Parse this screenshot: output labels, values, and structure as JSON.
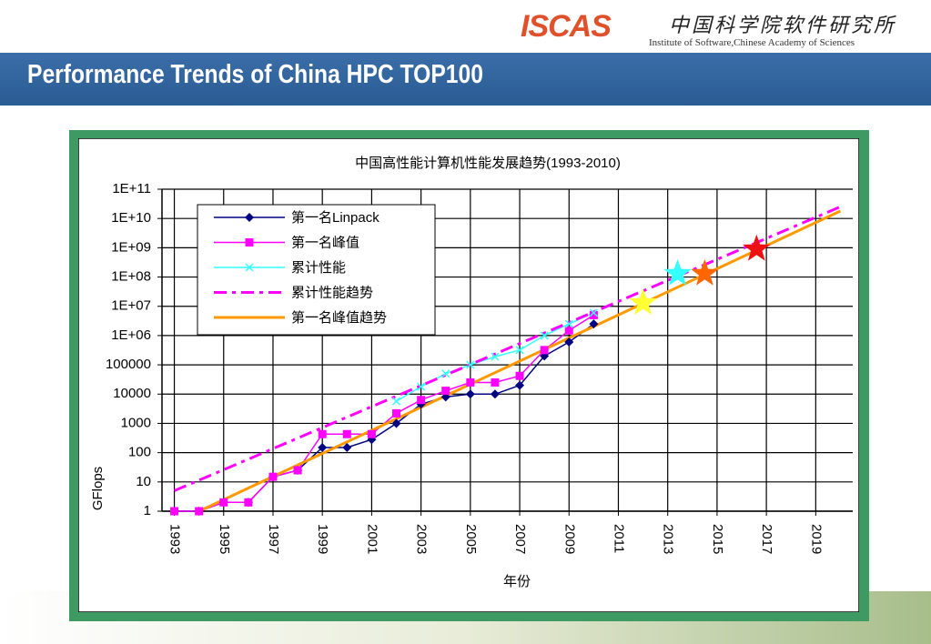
{
  "header": {
    "title": "Performance Trends of China HPC TOP100",
    "logo": "ISCAS",
    "org_cn": "中国科学院软件研究所",
    "org_en": "Institute of Software,Chinese Academy of Sciences"
  },
  "chart_data": {
    "type": "line",
    "title": "中国高性能计算机性能发展趋势(1993-2010)",
    "x_label": "年份",
    "y_label": "GFlops",
    "log_y": true,
    "grid": true,
    "xlim": [
      1992.5,
      2020.5
    ],
    "xticks": [
      1993,
      1995,
      1997,
      1999,
      2001,
      2003,
      2005,
      2007,
      2009,
      2011,
      2013,
      2015,
      2017,
      2019
    ],
    "ylim": [
      1,
      100000000000
    ],
    "yticks": [
      1,
      10,
      100,
      1000,
      10000,
      100000,
      {
        "value": 1000000,
        "label": "1E+06"
      },
      {
        "value": 10000000,
        "label": "1E+07"
      },
      {
        "value": 100000000,
        "label": "1E+08"
      },
      {
        "value": 1000000000,
        "label": "1E+09"
      },
      {
        "value": 10000000000,
        "label": "1E+10"
      },
      {
        "value": 100000000000,
        "label": "1E+11"
      }
    ],
    "series": [
      {
        "name": "第一名Linpack",
        "color": "#000080",
        "marker": "diamond",
        "x": [
          1993,
          1994,
          1995,
          1996,
          1997,
          1998,
          1999,
          2000,
          2001,
          2002,
          2003,
          2004,
          2005,
          2006,
          2007,
          2008,
          2009,
          2010
        ],
        "values": [
          1,
          1,
          2,
          2,
          15,
          25,
          150,
          150,
          280,
          1000,
          4500,
          8000,
          10000,
          10000,
          20000,
          200000,
          600000,
          2500000
        ]
      },
      {
        "name": "第一名峰值",
        "color": "#ff00ff",
        "marker": "square",
        "x": [
          1993,
          1994,
          1995,
          1996,
          1997,
          1998,
          1999,
          2000,
          2001,
          2002,
          2003,
          2004,
          2005,
          2006,
          2007,
          2008,
          2009,
          2010
        ],
        "values": [
          1,
          1,
          2,
          2,
          15,
          25,
          430,
          430,
          430,
          2200,
          6300,
          13000,
          25000,
          25000,
          42000,
          320000,
          1500000,
          5000000
        ]
      },
      {
        "name": "累计性能",
        "color": "#33ffff",
        "marker": "x",
        "x": [
          2002,
          2003,
          2004,
          2005,
          2006,
          2007,
          2008,
          2009,
          2010
        ],
        "values": [
          5700,
          18000,
          50000,
          100000,
          190000,
          320000,
          1000000,
          2500000,
          6000000
        ]
      },
      {
        "name": "累计性能趋势",
        "color": "#ff00ff",
        "style": "dashdot",
        "x": [
          1993,
          2020
        ],
        "values": [
          5,
          25000000000
        ]
      },
      {
        "name": "第一名峰值趋势",
        "color": "#ff9900",
        "x": [
          1994,
          2020
        ],
        "values": [
          1,
          18000000000
        ]
      }
    ],
    "stars": [
      {
        "x": 2012,
        "value": 13000000,
        "color": "#ffff33"
      },
      {
        "x": 2013.4,
        "value": 130000000,
        "color": "#33ffff"
      },
      {
        "x": 2014.5,
        "value": 130000000,
        "color": "#ff6600"
      },
      {
        "x": 2016.6,
        "value": 900000000,
        "color": "#ee1111"
      }
    ]
  }
}
